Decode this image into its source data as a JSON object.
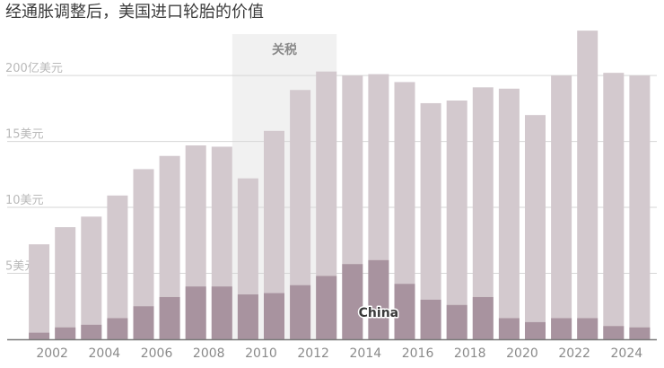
{
  "title": "经通胀调整后，美国进口轮胎的价值",
  "colors": {
    "total": "#d3c9ce",
    "china": "#a8939f",
    "band": "#f1f1f1",
    "grid": "#d6d6d6",
    "axis": "#7a7a7a"
  },
  "chart_data": {
    "type": "bar",
    "title": "经通胀调整后，美国进口轮胎的价值",
    "xlabel": "",
    "ylabel": "",
    "ylim": [
      0,
      23
    ],
    "x": [
      2001,
      2002,
      2003,
      2004,
      2005,
      2006,
      2007,
      2008,
      2009,
      2010,
      2011,
      2012,
      2013,
      2014,
      2015,
      2016,
      2017,
      2018,
      2019,
      2020,
      2021,
      2022,
      2023,
      2024
    ],
    "x_tick_labels": [
      "2002",
      "2004",
      "2006",
      "2008",
      "2010",
      "2012",
      "2014",
      "2016",
      "2018",
      "2020",
      "2022",
      "2024"
    ],
    "y_ticks": [
      {
        "value": 5,
        "label": "5美元"
      },
      {
        "value": 10,
        "label": "10美元"
      },
      {
        "value": 15,
        "label": "15美元"
      },
      {
        "value": 20,
        "label": "200亿美元"
      }
    ],
    "series": [
      {
        "values": [
          7.2,
          8.5,
          9.3,
          10.9,
          12.9,
          13.9,
          14.7,
          14.6,
          12.2,
          15.8,
          18.9,
          20.3,
          20.0,
          20.1,
          19.5,
          17.9,
          18.1,
          19.1,
          19.0,
          17.0,
          20.0,
          23.4,
          20.2,
          20.0
        ]
      },
      {
        "name": "China",
        "values": [
          0.5,
          0.9,
          1.1,
          1.6,
          2.5,
          3.2,
          4.0,
          4.0,
          3.4,
          3.5,
          4.1,
          4.8,
          5.7,
          6.0,
          4.2,
          3.0,
          2.6,
          3.2,
          1.6,
          1.3,
          1.6,
          1.6,
          1.0,
          0.9
        ]
      }
    ],
    "annotations": [
      {
        "label": "关税",
        "x_range": [
          2009,
          2012
        ]
      },
      {
        "label": "China",
        "x": 2014
      }
    ],
    "grid": true
  }
}
